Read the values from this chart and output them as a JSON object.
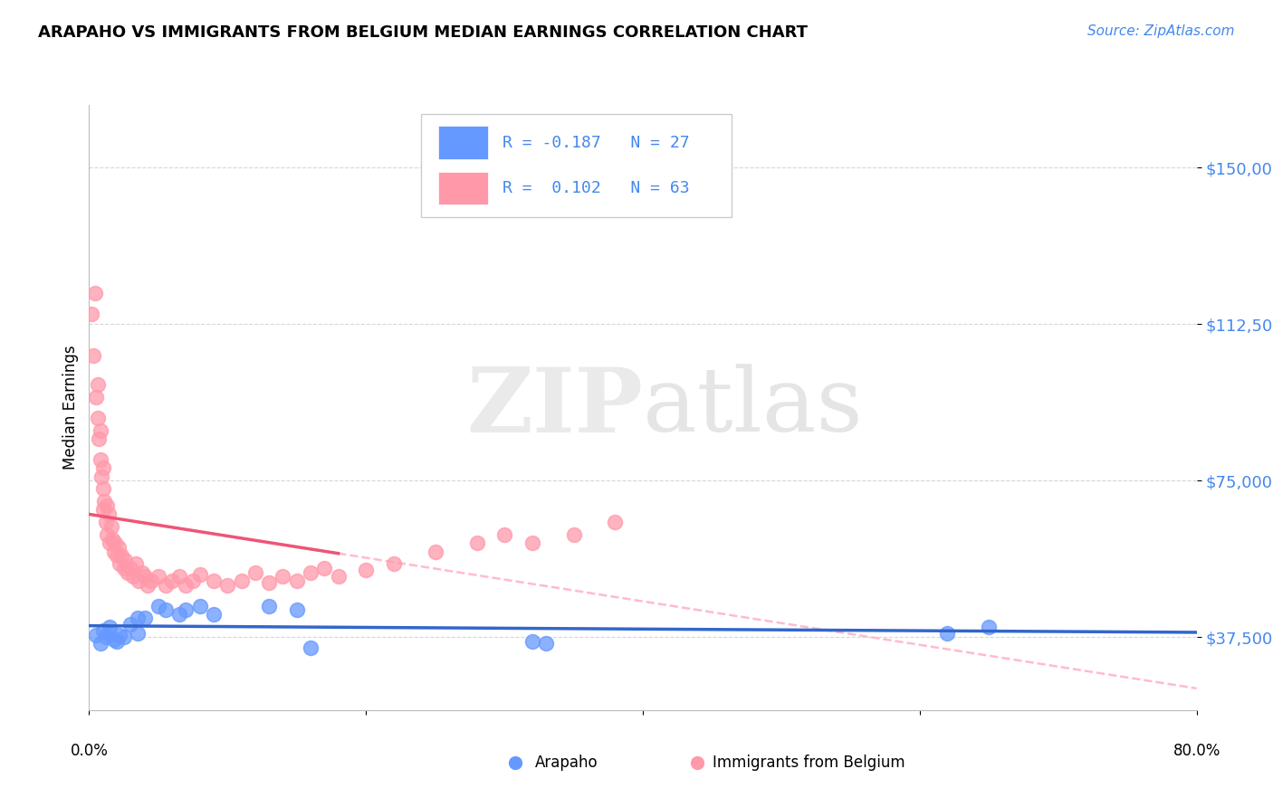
{
  "title": "ARAPAHO VS IMMIGRANTS FROM BELGIUM MEDIAN EARNINGS CORRELATION CHART",
  "source": "Source: ZipAtlas.com",
  "ylabel": "Median Earnings",
  "y_ticks": [
    37500,
    75000,
    112500,
    150000
  ],
  "y_tick_labels": [
    "$37,500",
    "$75,000",
    "$112,500",
    "$150,000"
  ],
  "xmin": 0.0,
  "xmax": 0.8,
  "ymin": 20000,
  "ymax": 165000,
  "legend_blue_r": "R = -0.187",
  "legend_blue_n": "N = 27",
  "legend_pink_r": "R =  0.102",
  "legend_pink_n": "N = 63",
  "legend_blue_label": "Arapaho",
  "legend_pink_label": "Immigrants from Belgium",
  "blue_color": "#6699FF",
  "pink_color": "#FF99AA",
  "trend_blue_color": "#3366CC",
  "trend_pink_color": "#EE5577",
  "trend_pink_dash_color": "#FFBBCC",
  "watermark_zip": "ZIP",
  "watermark_atlas": "atlas",
  "blue_x": [
    0.005,
    0.008,
    0.01,
    0.012,
    0.015,
    0.015,
    0.018,
    0.02,
    0.022,
    0.025,
    0.03,
    0.035,
    0.035,
    0.04,
    0.05,
    0.055,
    0.065,
    0.07,
    0.08,
    0.09,
    0.13,
    0.15,
    0.16,
    0.32,
    0.33,
    0.62,
    0.65
  ],
  "blue_y": [
    38000,
    36000,
    39000,
    37500,
    38500,
    40000,
    37000,
    36500,
    38000,
    37500,
    40500,
    42000,
    38500,
    42000,
    45000,
    44000,
    43000,
    44000,
    45000,
    43000,
    45000,
    44000,
    35000,
    36500,
    36000,
    38500,
    40000
  ],
  "pink_x": [
    0.002,
    0.003,
    0.004,
    0.005,
    0.006,
    0.006,
    0.007,
    0.008,
    0.008,
    0.009,
    0.01,
    0.01,
    0.01,
    0.011,
    0.012,
    0.013,
    0.013,
    0.014,
    0.015,
    0.016,
    0.017,
    0.018,
    0.019,
    0.02,
    0.021,
    0.022,
    0.023,
    0.025,
    0.026,
    0.028,
    0.03,
    0.032,
    0.034,
    0.036,
    0.038,
    0.04,
    0.042,
    0.045,
    0.05,
    0.055,
    0.06,
    0.065,
    0.07,
    0.075,
    0.08,
    0.09,
    0.1,
    0.11,
    0.12,
    0.13,
    0.14,
    0.15,
    0.16,
    0.17,
    0.18,
    0.2,
    0.22,
    0.25,
    0.28,
    0.3,
    0.32,
    0.35,
    0.38
  ],
  "pink_y": [
    115000,
    105000,
    120000,
    95000,
    90000,
    98000,
    85000,
    80000,
    87000,
    76000,
    73000,
    78000,
    68000,
    70000,
    65000,
    69000,
    62000,
    67000,
    60000,
    64000,
    61000,
    58000,
    60000,
    57000,
    59000,
    55000,
    57000,
    54000,
    56000,
    53000,
    54000,
    52000,
    55000,
    51000,
    53000,
    52000,
    50000,
    51000,
    52000,
    50000,
    51000,
    52000,
    50000,
    51000,
    52500,
    51000,
    50000,
    51000,
    53000,
    50500,
    52000,
    51000,
    53000,
    54000,
    52000,
    53500,
    55000,
    58000,
    60000,
    62000,
    60000,
    62000,
    65000
  ]
}
